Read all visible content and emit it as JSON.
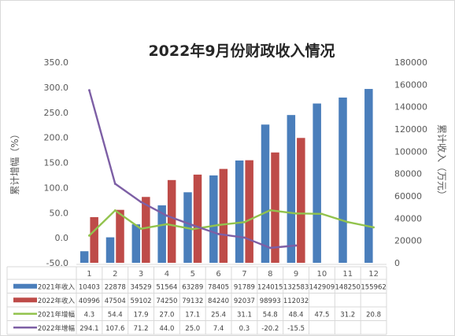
{
  "chart_data": {
    "type": "bar",
    "title": "2022年9月份财政收入情况",
    "ylabel_left": "累计增幅（%）",
    "ylabel_right": "累计收入（万元）",
    "categories": [
      "1",
      "2",
      "3",
      "4",
      "5",
      "6",
      "7",
      "8",
      "9",
      "10",
      "11",
      "12"
    ],
    "left_axis": {
      "range": [
        -50,
        350
      ],
      "ticks": [
        -50,
        0,
        50,
        100,
        150,
        200,
        250,
        300,
        350
      ],
      "tick_labels": [
        "-50.0",
        "0.0",
        "50.0",
        "100.0",
        "150.0",
        "200.0",
        "250.0",
        "300.0",
        "350.0"
      ]
    },
    "right_axis": {
      "range": [
        0,
        180000
      ],
      "ticks": [
        0,
        20000,
        40000,
        60000,
        80000,
        100000,
        120000,
        140000,
        160000,
        180000
      ],
      "tick_labels": [
        "0",
        "20000",
        "40000",
        "60000",
        "80000",
        "100000",
        "120000",
        "140000",
        "160000",
        "180000"
      ]
    },
    "series": [
      {
        "name": "2021年收入",
        "type": "bar",
        "axis": "right",
        "color": "#4a7ebb",
        "values": [
          10403,
          22878,
          34529,
          51564,
          63289,
          78405,
          91789,
          124015,
          132583,
          142909,
          148250,
          155962
        ],
        "labels": [
          "10403",
          "22878",
          "34529",
          "51564",
          "63289",
          "78405",
          "91789",
          "124015",
          "132583",
          "142909",
          "148250",
          "155962"
        ]
      },
      {
        "name": "2022年收入",
        "type": "bar",
        "axis": "right",
        "color": "#be4b48",
        "values": [
          40996,
          47504,
          59102,
          74250,
          79132,
          84240,
          92037,
          98993,
          112032,
          null,
          null,
          null
        ],
        "labels": [
          "40996",
          "47504",
          "59102",
          "74250",
          "79132",
          "84240",
          "92037",
          "98993",
          "112032",
          "",
          "",
          ""
        ]
      },
      {
        "name": "2021年增幅",
        "type": "line",
        "axis": "left",
        "color": "#92c34d",
        "values": [
          4.3,
          54.4,
          17.9,
          27.0,
          17.1,
          25.4,
          31.1,
          54.8,
          48.4,
          47.5,
          31.2,
          20.8
        ],
        "labels": [
          "4.3",
          "54.4",
          "17.9",
          "27.0",
          "17.1",
          "25.4",
          "31.1",
          "54.8",
          "48.4",
          "47.5",
          "31.2",
          "20.8"
        ]
      },
      {
        "name": "2022年增幅",
        "type": "line",
        "axis": "left",
        "color": "#7d5fa5",
        "values": [
          294.1,
          107.6,
          71.2,
          44.0,
          25.0,
          7.4,
          0.3,
          -20.2,
          -15.5,
          null,
          null,
          null
        ],
        "labels": [
          "294.1",
          "107.6",
          "71.2",
          "44.0",
          "25.0",
          "7.4",
          "0.3",
          "-20.2",
          "-15.5",
          "",
          "",
          ""
        ]
      }
    ],
    "legend": "data-table-below",
    "grid": false
  }
}
